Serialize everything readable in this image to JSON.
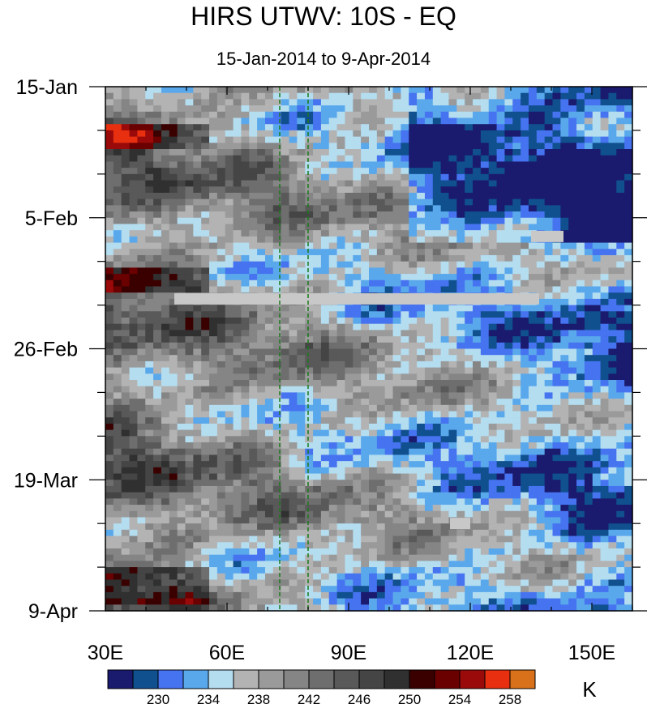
{
  "chart_data": {
    "type": "heatmap",
    "title": "HIRS UTWV: 10S - EQ",
    "subtitle": "15-Jan-2014 to 9-Apr-2014",
    "x_ticks": [
      "30E",
      "60E",
      "90E",
      "120E",
      "150E"
    ],
    "x_tick_values": [
      30,
      60,
      90,
      120,
      150
    ],
    "xlim": [
      30,
      160
    ],
    "y_ticks": [
      "15-Jan",
      "5-Feb",
      "26-Feb",
      "19-Mar",
      "9-Apr"
    ],
    "y_tick_dates": [
      "2014-01-15",
      "2014-02-05",
      "2014-02-26",
      "2014-03-19",
      "2014-04-09"
    ],
    "ylim": [
      "2014-01-15",
      "2014-04-09"
    ],
    "reference_lines_x": [
      73,
      80
    ],
    "colorbar": {
      "unit": "K",
      "tick_labels": [
        "230",
        "234",
        "238",
        "242",
        "246",
        "250",
        "254",
        "258"
      ],
      "colors": [
        "#1a1a6e",
        "#10508f",
        "#4673f0",
        "#5aa8ec",
        "#b4ddf0",
        "#b3b3b3",
        "#9a9a9a",
        "#858585",
        "#6e6e6e",
        "#595959",
        "#454545",
        "#303030",
        "#3a0000",
        "#6a0000",
        "#9a0a0a",
        "#e83010",
        "#d9701a"
      ]
    },
    "missing_color": "#c8c8c8",
    "missing_regions": [
      {
        "x": [
          47,
          137
        ],
        "date": "2014-02-18"
      },
      {
        "x": [
          135,
          143
        ],
        "date": "2014-02-08"
      },
      {
        "x": [
          115,
          120
        ],
        "date": "2014-03-26"
      }
    ]
  }
}
